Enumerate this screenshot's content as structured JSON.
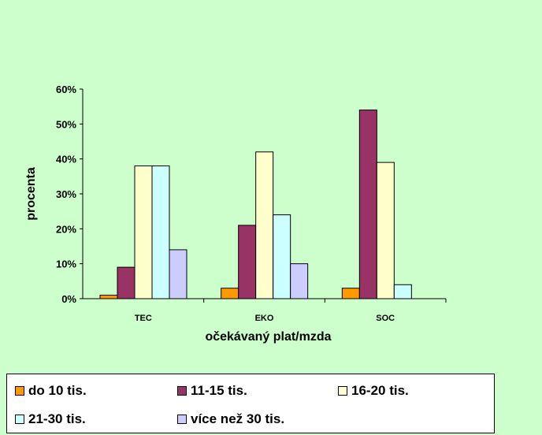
{
  "chart_data": {
    "type": "bar",
    "categories": [
      "TEC",
      "EKO",
      "SOC"
    ],
    "series": [
      {
        "name": "do 10 tis.",
        "values": [
          1,
          3,
          3
        ],
        "color": "#ff9900"
      },
      {
        "name": "11-15 tis.",
        "values": [
          9,
          21,
          54
        ],
        "color": "#993366"
      },
      {
        "name": "16-20 tis.",
        "values": [
          38,
          42,
          39
        ],
        "color": "#ffffcc"
      },
      {
        "name": "21-30 tis.",
        "values": [
          38,
          24,
          4
        ],
        "color": "#ccffff"
      },
      {
        "name": "více než 30 tis.",
        "values": [
          14,
          10,
          0
        ],
        "color": "#ccccff"
      }
    ],
    "ylim": [
      0,
      60
    ],
    "yticks": [
      "0%",
      "10%",
      "20%",
      "30%",
      "40%",
      "50%",
      "60%"
    ],
    "xlabel": "očekávaný plat/mzda",
    "ylabel": "procenta",
    "grid": false,
    "legend_position": "bottom"
  }
}
